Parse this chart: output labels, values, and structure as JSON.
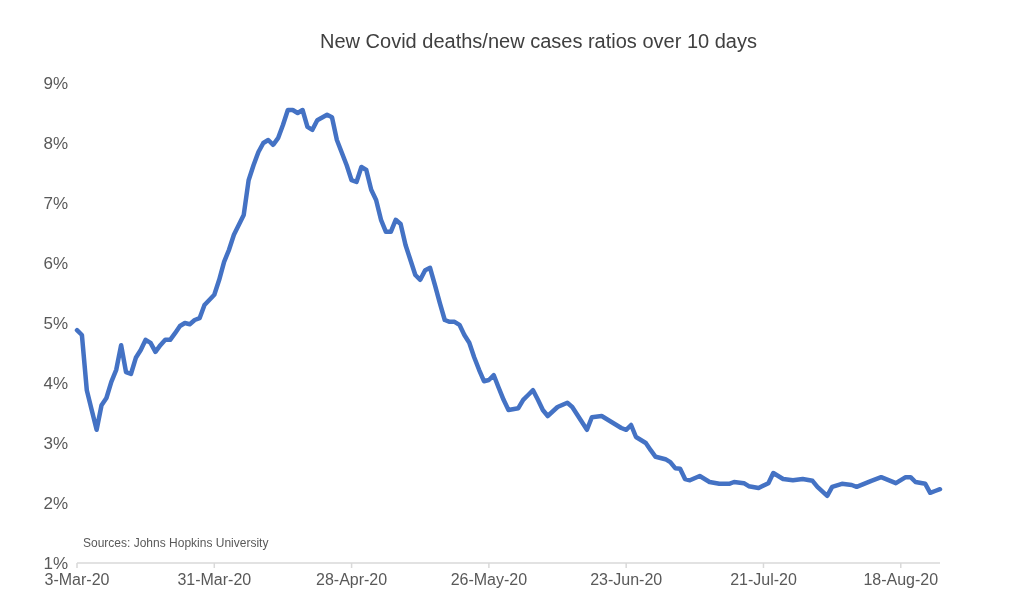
{
  "chart_data": {
    "type": "line",
    "title": "New Covid deaths/new cases ratios over 10 days",
    "x": [
      "2020-03-03",
      "2020-03-04",
      "2020-03-05",
      "2020-03-06",
      "2020-03-07",
      "2020-03-08",
      "2020-03-09",
      "2020-03-10",
      "2020-03-11",
      "2020-03-12",
      "2020-03-13",
      "2020-03-14",
      "2020-03-15",
      "2020-03-16",
      "2020-03-17",
      "2020-03-18",
      "2020-03-19",
      "2020-03-20",
      "2020-03-21",
      "2020-03-22",
      "2020-03-23",
      "2020-03-24",
      "2020-03-25",
      "2020-03-26",
      "2020-03-27",
      "2020-03-28",
      "2020-03-29",
      "2020-03-31",
      "2020-04-01",
      "2020-04-02",
      "2020-04-03",
      "2020-04-04",
      "2020-04-06",
      "2020-04-07",
      "2020-04-08",
      "2020-04-09",
      "2020-04-10",
      "2020-04-11",
      "2020-04-12",
      "2020-04-13",
      "2020-04-14",
      "2020-04-15",
      "2020-04-16",
      "2020-04-17",
      "2020-04-18",
      "2020-04-19",
      "2020-04-20",
      "2020-04-21",
      "2020-04-23",
      "2020-04-24",
      "2020-04-25",
      "2020-04-27",
      "2020-04-28",
      "2020-04-29",
      "2020-04-30",
      "2020-05-01",
      "2020-05-02",
      "2020-05-03",
      "2020-05-04",
      "2020-05-05",
      "2020-05-06",
      "2020-05-07",
      "2020-05-08",
      "2020-05-09",
      "2020-05-10",
      "2020-05-11",
      "2020-05-12",
      "2020-05-13",
      "2020-05-14",
      "2020-05-15",
      "2020-05-16",
      "2020-05-17",
      "2020-05-18",
      "2020-05-19",
      "2020-05-20",
      "2020-05-21",
      "2020-05-22",
      "2020-05-23",
      "2020-05-24",
      "2020-05-25",
      "2020-05-26",
      "2020-05-27",
      "2020-05-28",
      "2020-05-29",
      "2020-05-30",
      "2020-06-01",
      "2020-06-02",
      "2020-06-03",
      "2020-06-04",
      "2020-06-05",
      "2020-06-06",
      "2020-06-07",
      "2020-06-09",
      "2020-06-11",
      "2020-06-12",
      "2020-06-15",
      "2020-06-16",
      "2020-06-18",
      "2020-06-20",
      "2020-06-22",
      "2020-06-23",
      "2020-06-24",
      "2020-06-25",
      "2020-06-27",
      "2020-06-28",
      "2020-06-29",
      "2020-07-01",
      "2020-07-02",
      "2020-07-03",
      "2020-07-04",
      "2020-07-05",
      "2020-07-06",
      "2020-07-08",
      "2020-07-10",
      "2020-07-12",
      "2020-07-14",
      "2020-07-15",
      "2020-07-17",
      "2020-07-18",
      "2020-07-20",
      "2020-07-22",
      "2020-07-23",
      "2020-07-25",
      "2020-07-27",
      "2020-07-29",
      "2020-07-31",
      "2020-08-01",
      "2020-08-03",
      "2020-08-04",
      "2020-08-06",
      "2020-08-08",
      "2020-08-09",
      "2020-08-12",
      "2020-08-14",
      "2020-08-17",
      "2020-08-19",
      "2020-08-20",
      "2020-08-21",
      "2020-08-23",
      "2020-08-24",
      "2020-08-25",
      "2020-08-26"
    ],
    "series": [
      {
        "color": "#4472c4",
        "values": [
          4.88,
          4.8,
          3.88,
          3.55,
          3.22,
          3.63,
          3.75,
          4.02,
          4.22,
          4.63,
          4.18,
          4.15,
          4.42,
          4.55,
          4.72,
          4.67,
          4.52,
          4.63,
          4.72,
          4.72,
          4.83,
          4.95,
          5.0,
          4.98,
          5.05,
          5.08,
          5.3,
          5.47,
          5.72,
          6.02,
          6.22,
          6.47,
          6.8,
          7.38,
          7.63,
          7.85,
          8.0,
          8.05,
          7.97,
          8.08,
          8.3,
          8.55,
          8.55,
          8.5,
          8.55,
          8.27,
          8.22,
          8.38,
          8.47,
          8.43,
          8.05,
          7.63,
          7.38,
          7.35,
          7.6,
          7.55,
          7.22,
          7.05,
          6.72,
          6.52,
          6.52,
          6.72,
          6.65,
          6.3,
          6.05,
          5.8,
          5.72,
          5.88,
          5.92,
          5.63,
          5.33,
          5.05,
          5.02,
          5.02,
          4.97,
          4.8,
          4.67,
          4.43,
          4.22,
          4.03,
          4.05,
          4.13,
          3.92,
          3.72,
          3.55,
          3.58,
          3.72,
          3.8,
          3.88,
          3.72,
          3.55,
          3.45,
          3.6,
          3.67,
          3.6,
          3.22,
          3.43,
          3.45,
          3.35,
          3.25,
          3.22,
          3.3,
          3.1,
          3.0,
          2.88,
          2.77,
          2.73,
          2.68,
          2.58,
          2.57,
          2.4,
          2.38,
          2.45,
          2.35,
          2.32,
          2.32,
          2.35,
          2.33,
          2.28,
          2.25,
          2.33,
          2.5,
          2.4,
          2.38,
          2.4,
          2.37,
          2.27,
          2.12,
          2.27,
          2.32,
          2.3,
          2.27,
          2.37,
          2.43,
          2.33,
          2.43,
          2.43,
          2.35,
          2.32,
          2.17,
          2.2,
          2.23
        ]
      }
    ],
    "xlim": [
      "2020-03-03",
      "2020-08-26"
    ],
    "xticks": [
      {
        "value": "2020-03-03",
        "label": "3-Mar-20"
      },
      {
        "value": "2020-03-31",
        "label": "31-Mar-20"
      },
      {
        "value": "2020-04-28",
        "label": "28-Apr-20"
      },
      {
        "value": "2020-05-26",
        "label": "26-May-20"
      },
      {
        "value": "2020-06-23",
        "label": "23-Jun-20"
      },
      {
        "value": "2020-07-21",
        "label": "21-Jul-20"
      },
      {
        "value": "2020-08-18",
        "label": "18-Aug-20"
      }
    ],
    "ylim": [
      1,
      9
    ],
    "yticks": [
      {
        "value": 1,
        "label": "1%"
      },
      {
        "value": 2,
        "label": "2%"
      },
      {
        "value": 3,
        "label": "3%"
      },
      {
        "value": 4,
        "label": "4%"
      },
      {
        "value": 5,
        "label": "5%"
      },
      {
        "value": 6,
        "label": "6%"
      },
      {
        "value": 7,
        "label": "7%"
      },
      {
        "value": 8,
        "label": "8%"
      },
      {
        "value": 9,
        "label": "9%"
      }
    ],
    "annotations": [
      "Sources: Johns Hopkins University"
    ],
    "line_style": "solid"
  }
}
